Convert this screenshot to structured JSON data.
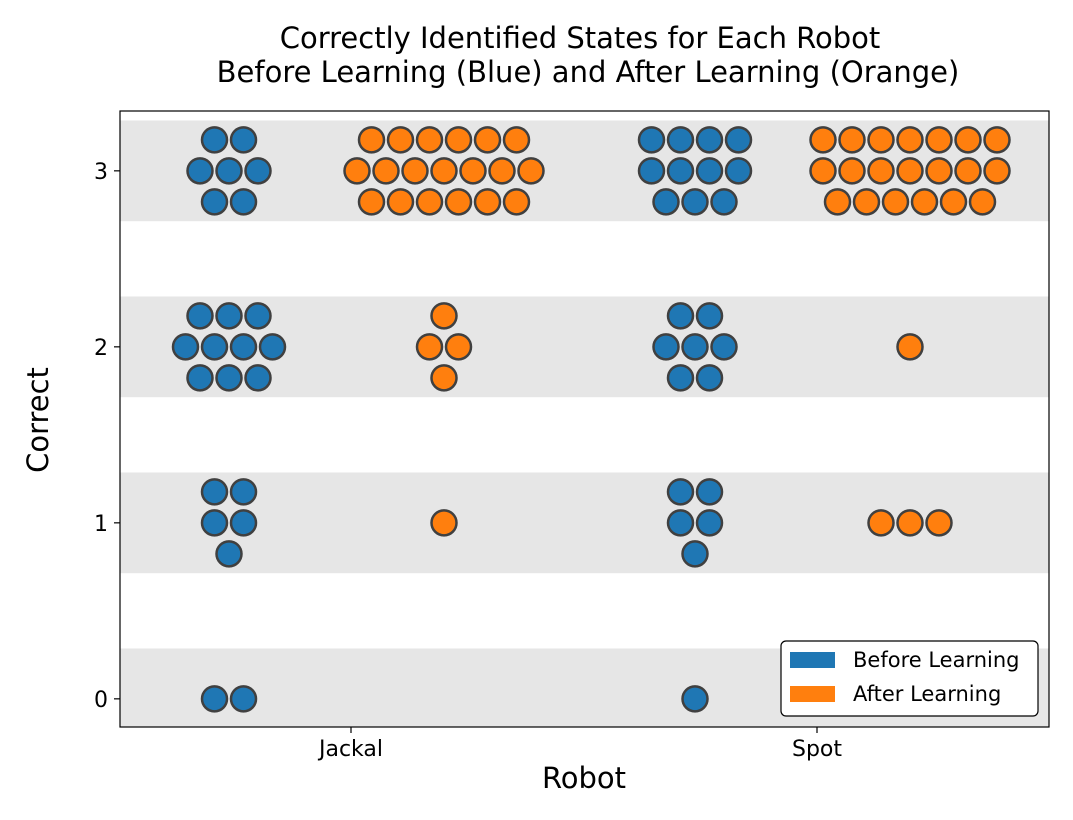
{
  "chart_data": {
    "type": "scatter",
    "title_line1": "Correctly Identified States for Each Robot",
    "title_line2": "Before Learning (Blue) and After Learning (Orange)",
    "xlabel": "Robot",
    "ylabel": "Correct",
    "categories": [
      "Jackal",
      "Spot"
    ],
    "y_ticks": [
      "0",
      "1",
      "2",
      "3"
    ],
    "ylim": [
      -0.16,
      3.34
    ],
    "series": [
      {
        "name": "Before Learning",
        "color": "#1f77b4",
        "counts": {
          "Jackal": [
            2,
            5,
            10,
            7
          ],
          "Spot": [
            1,
            5,
            7,
            11
          ]
        }
      },
      {
        "name": "After Learning",
        "color": "#ff7f0e",
        "counts": {
          "Jackal": [
            0,
            1,
            4,
            19
          ],
          "Spot": [
            0,
            3,
            1,
            20
          ]
        }
      }
    ],
    "band_color": "#e6e6e6",
    "legend_position": "lower-right"
  }
}
